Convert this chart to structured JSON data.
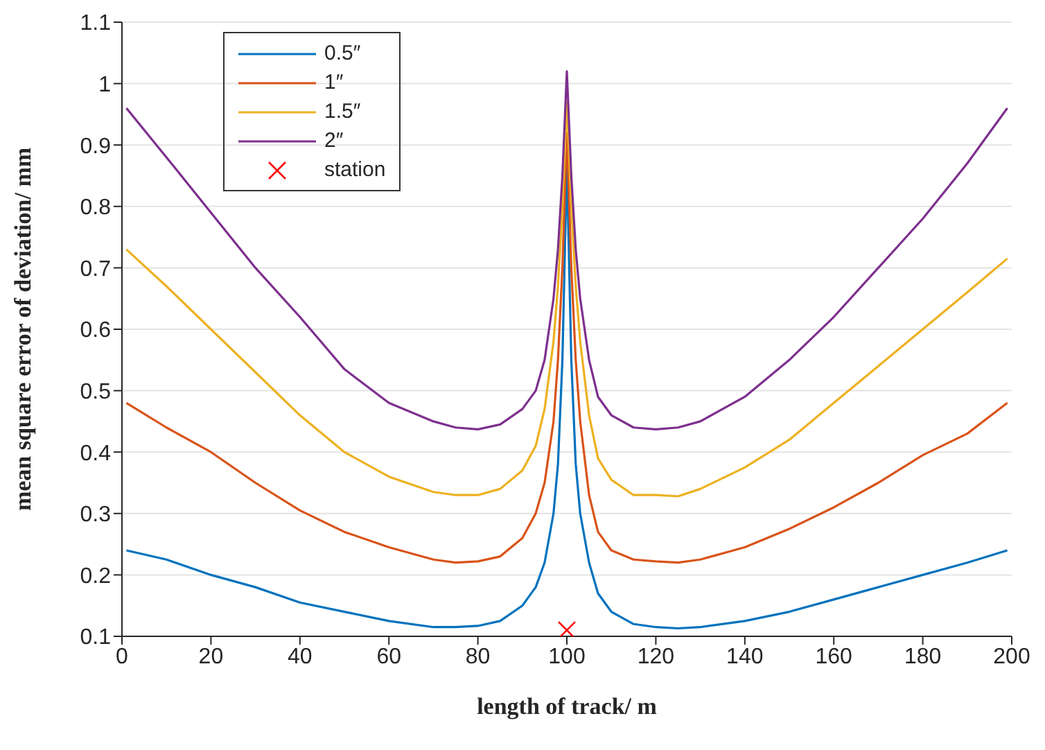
{
  "chart_data": {
    "type": "line",
    "xlabel": "length of track/ m",
    "ylabel": "mean square error of deviation/ mm",
    "x": [
      1,
      10,
      20,
      30,
      40,
      50,
      60,
      70,
      75,
      80,
      85,
      90,
      93,
      95,
      97,
      98,
      99,
      100,
      101,
      102,
      103,
      105,
      107,
      110,
      115,
      120,
      125,
      130,
      140,
      150,
      160,
      170,
      180,
      190,
      199
    ],
    "series": [
      {
        "name": "0.5″",
        "color": "#0072bd",
        "values": [
          0.24,
          0.225,
          0.2,
          0.18,
          0.155,
          0.14,
          0.125,
          0.115,
          0.115,
          0.117,
          0.125,
          0.15,
          0.18,
          0.22,
          0.3,
          0.38,
          0.55,
          0.87,
          0.55,
          0.38,
          0.3,
          0.22,
          0.17,
          0.14,
          0.12,
          0.115,
          0.113,
          0.115,
          0.125,
          0.14,
          0.16,
          0.18,
          0.2,
          0.22,
          0.24
        ]
      },
      {
        "name": "1″",
        "color": "#d95319",
        "values": [
          0.48,
          0.44,
          0.4,
          0.35,
          0.305,
          0.27,
          0.245,
          0.225,
          0.22,
          0.222,
          0.23,
          0.26,
          0.3,
          0.35,
          0.45,
          0.55,
          0.7,
          0.92,
          0.7,
          0.55,
          0.45,
          0.33,
          0.27,
          0.24,
          0.225,
          0.222,
          0.22,
          0.225,
          0.245,
          0.275,
          0.31,
          0.35,
          0.395,
          0.43,
          0.48
        ]
      },
      {
        "name": "1.5″",
        "color": "#edb120",
        "values": [
          0.73,
          0.67,
          0.6,
          0.53,
          0.46,
          0.4,
          0.36,
          0.335,
          0.33,
          0.33,
          0.34,
          0.37,
          0.41,
          0.47,
          0.58,
          0.67,
          0.8,
          0.97,
          0.8,
          0.67,
          0.58,
          0.46,
          0.39,
          0.355,
          0.33,
          0.33,
          0.328,
          0.34,
          0.375,
          0.42,
          0.48,
          0.54,
          0.6,
          0.66,
          0.715
        ]
      },
      {
        "name": "2″",
        "color": "#7e2f8e",
        "values": [
          0.96,
          0.88,
          0.79,
          0.7,
          0.62,
          0.535,
          0.48,
          0.45,
          0.44,
          0.437,
          0.445,
          0.47,
          0.5,
          0.55,
          0.65,
          0.73,
          0.85,
          1.02,
          0.85,
          0.73,
          0.65,
          0.55,
          0.49,
          0.46,
          0.44,
          0.437,
          0.44,
          0.45,
          0.49,
          0.55,
          0.62,
          0.7,
          0.78,
          0.87,
          0.96
        ]
      },
      {
        "name": "station",
        "type": "scatter",
        "color": "#ff0000",
        "marker": "cross",
        "x": [
          100
        ],
        "values": [
          0.11
        ]
      }
    ],
    "xlim": [
      0,
      200
    ],
    "xticks": [
      0,
      20,
      40,
      60,
      80,
      100,
      120,
      140,
      160,
      180,
      200
    ],
    "ylim": [
      0.1,
      1.1
    ],
    "yticks": [
      0.1,
      0.2,
      0.3,
      0.4,
      0.5,
      0.6,
      0.7,
      0.8,
      0.9,
      1,
      1.1
    ],
    "grid": "y",
    "legend": "top left",
    "marker": "none",
    "line_style": "solid"
  }
}
